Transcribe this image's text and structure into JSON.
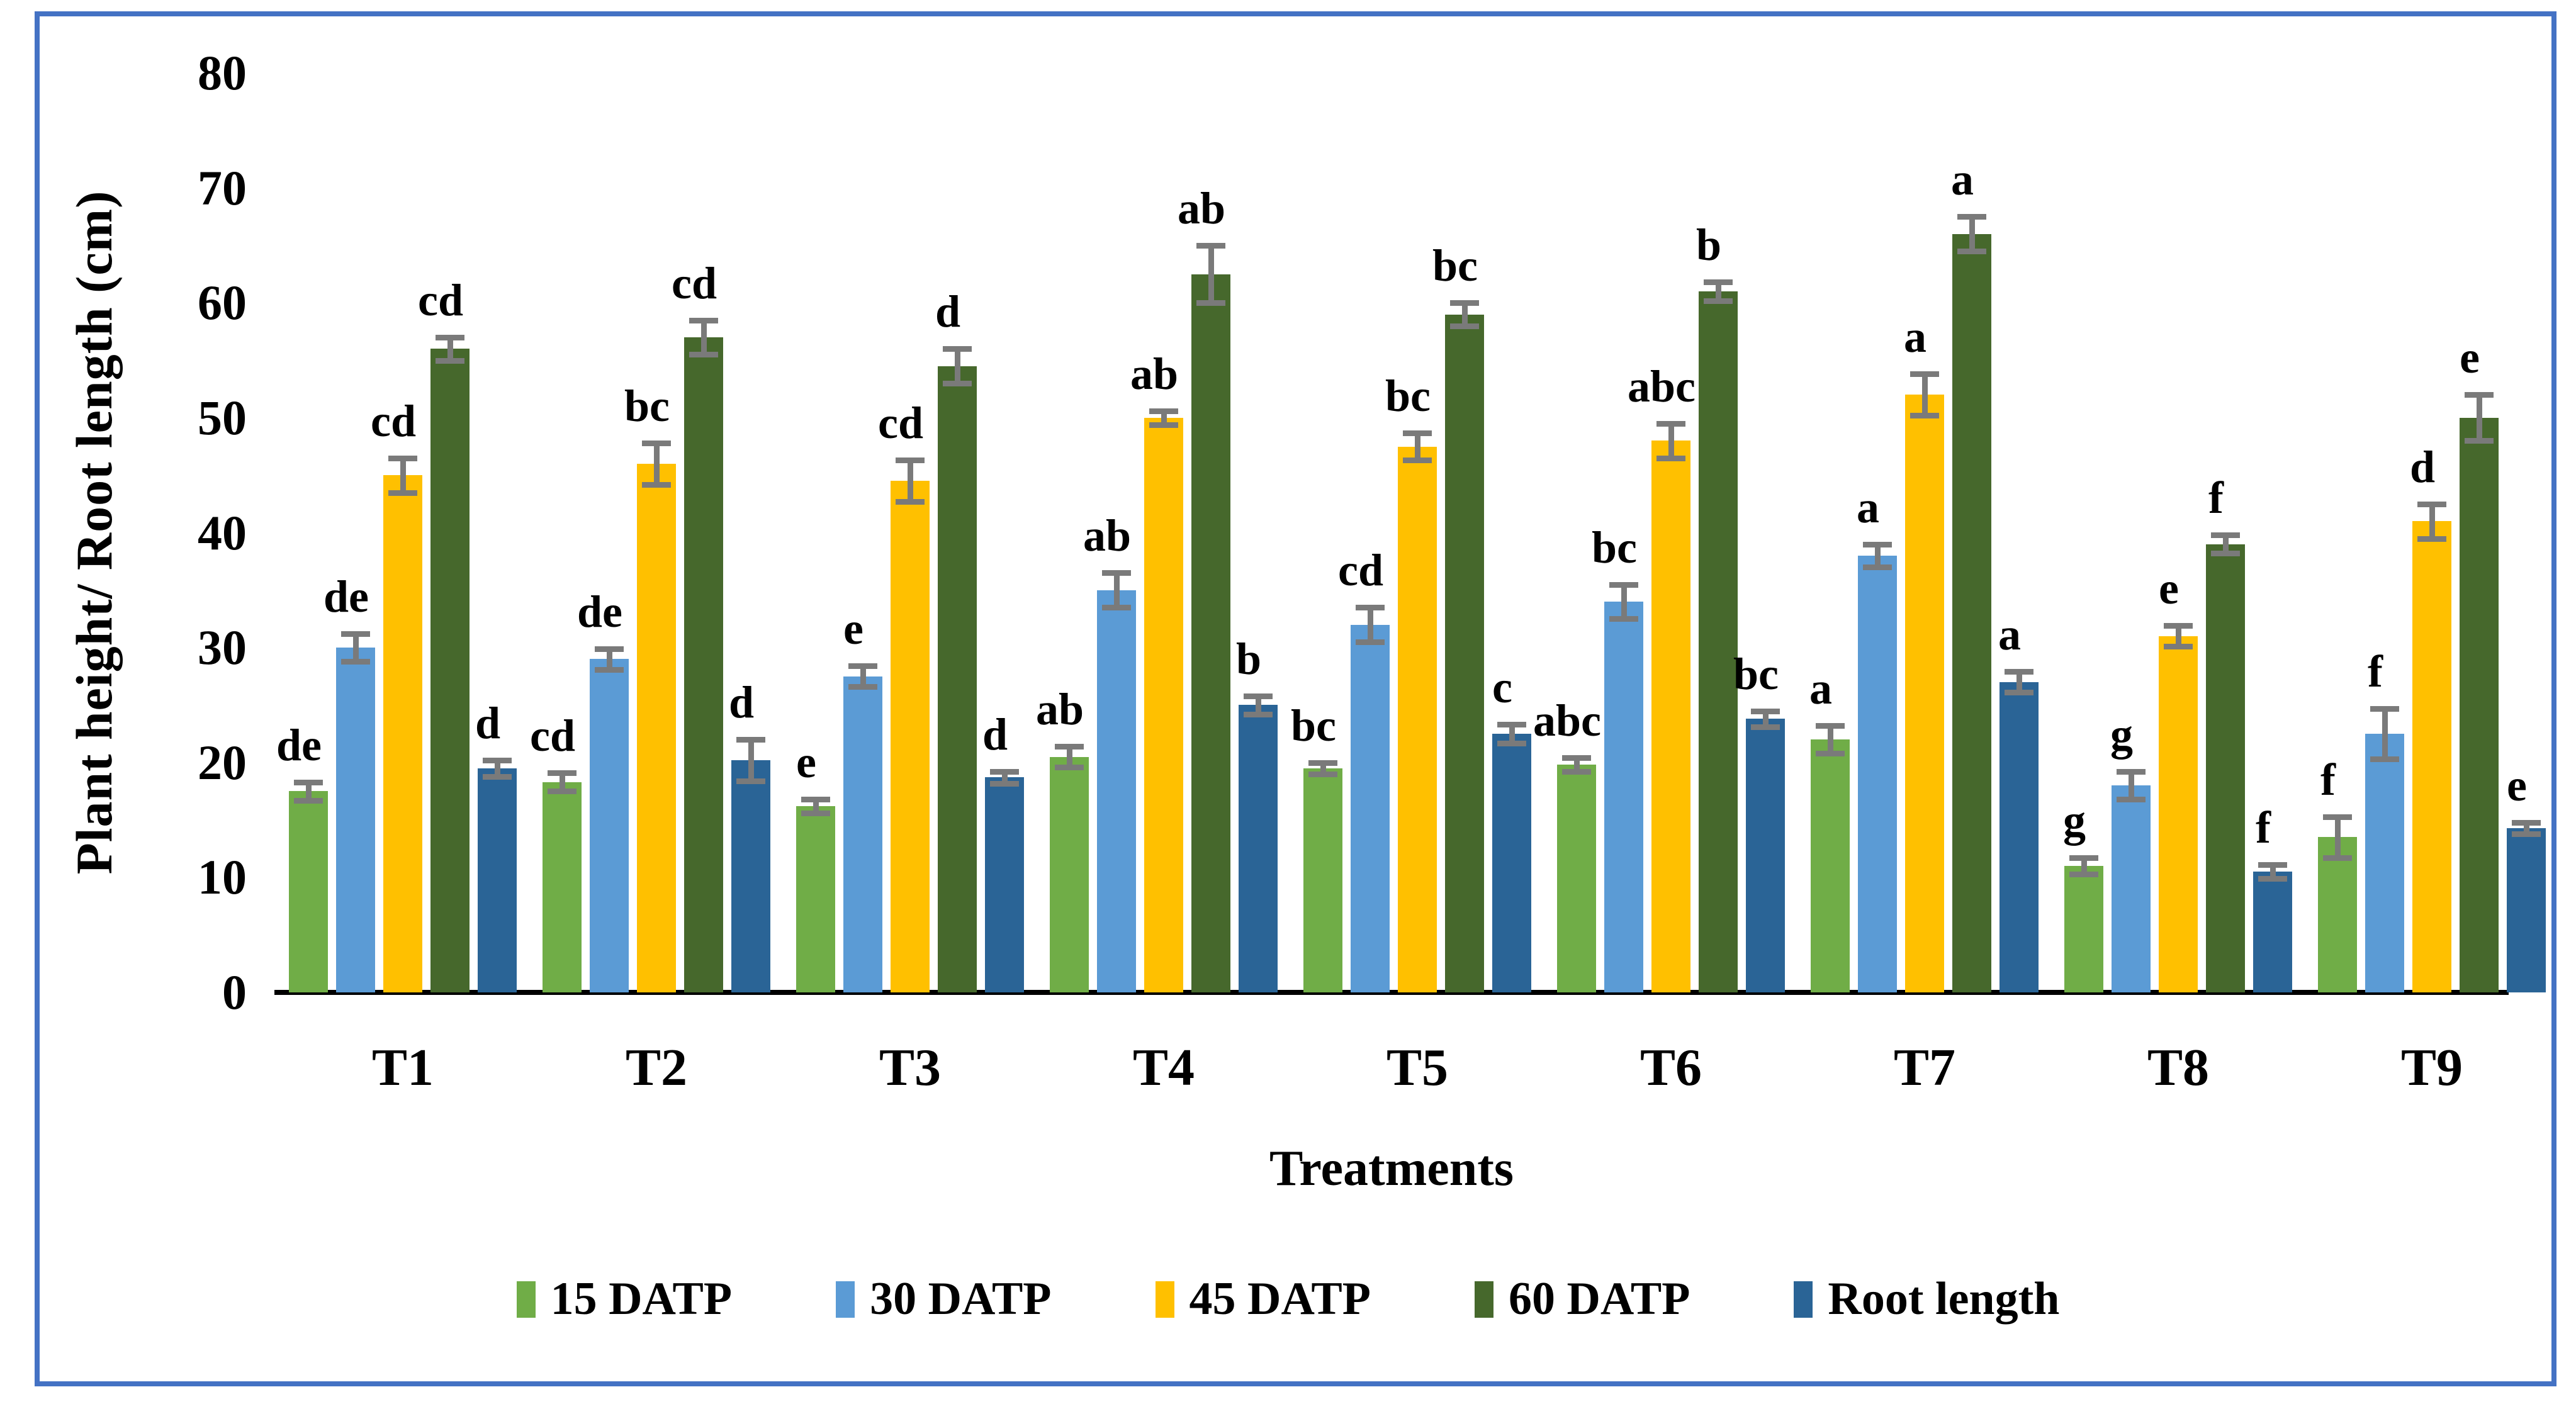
{
  "chart_data": {
    "type": "bar",
    "title": "",
    "xlabel": "Treatments",
    "ylabel": "Plant height/ Root length (cm)",
    "ylim": [
      0,
      80
    ],
    "yticks": [
      0,
      10,
      20,
      30,
      40,
      50,
      60,
      70,
      80
    ],
    "grid": false,
    "legend_position": "bottom",
    "error_bar_color": "#7a7a7a",
    "categories": [
      "T1",
      "T2",
      "T3",
      "T4",
      "T5",
      "T6",
      "T7",
      "T8",
      "T9"
    ],
    "series": [
      {
        "name": "15 DATP",
        "color": "#70AD47",
        "values": [
          17.5,
          18.3,
          16.2,
          20.5,
          19.5,
          19.8,
          22.0,
          11.0,
          13.5
        ],
        "errors": [
          0.8,
          0.8,
          0.6,
          0.9,
          0.5,
          0.6,
          1.2,
          0.7,
          1.8
        ],
        "letters": [
          "de",
          "cd",
          "e",
          "ab",
          "bc",
          "abc",
          "a",
          "g",
          "f"
        ]
      },
      {
        "name": "30 DATP",
        "color": "#5B9BD5",
        "values": [
          30.0,
          29.0,
          27.5,
          35.0,
          32.0,
          34.0,
          38.0,
          18.0,
          22.5
        ],
        "errors": [
          1.2,
          0.9,
          0.9,
          1.5,
          1.5,
          1.5,
          1.0,
          1.2,
          2.2
        ],
        "letters": [
          "de",
          "de",
          "e",
          "ab",
          "cd",
          "bc",
          "a",
          "g",
          "f"
        ]
      },
      {
        "name": "45 DATP",
        "color": "#FFC000",
        "values": [
          45.0,
          46.0,
          44.5,
          50.0,
          47.5,
          48.0,
          52.0,
          31.0,
          41.0
        ],
        "errors": [
          1.5,
          1.8,
          1.8,
          0.6,
          1.2,
          1.5,
          1.8,
          0.9,
          1.5
        ],
        "letters": [
          "cd",
          "bc",
          "cd",
          "ab",
          "bc",
          "abc",
          "a",
          "e",
          "d"
        ]
      },
      {
        "name": "60 DATP",
        "color": "#46682C",
        "values": [
          56.0,
          57.0,
          54.5,
          62.5,
          59.0,
          61.0,
          66.0,
          39.0,
          50.0
        ],
        "errors": [
          1.0,
          1.5,
          1.5,
          2.5,
          1.0,
          0.8,
          1.5,
          0.8,
          2.0
        ],
        "letters": [
          "cd",
          "cd",
          "d",
          "ab",
          "bc",
          "b",
          "a",
          "f",
          "e"
        ]
      },
      {
        "name": "Root length",
        "color": "#2A6496",
        "values": [
          19.5,
          20.2,
          18.7,
          25.0,
          22.5,
          23.8,
          27.0,
          10.5,
          14.3
        ],
        "errors": [
          0.7,
          1.8,
          0.5,
          0.8,
          0.8,
          0.7,
          0.9,
          0.6,
          0.5
        ],
        "letters": [
          "d",
          "d",
          "d",
          "b",
          "c",
          "bc",
          "a",
          "f",
          "e"
        ]
      }
    ],
    "frame_border_color": "#4472C4"
  }
}
